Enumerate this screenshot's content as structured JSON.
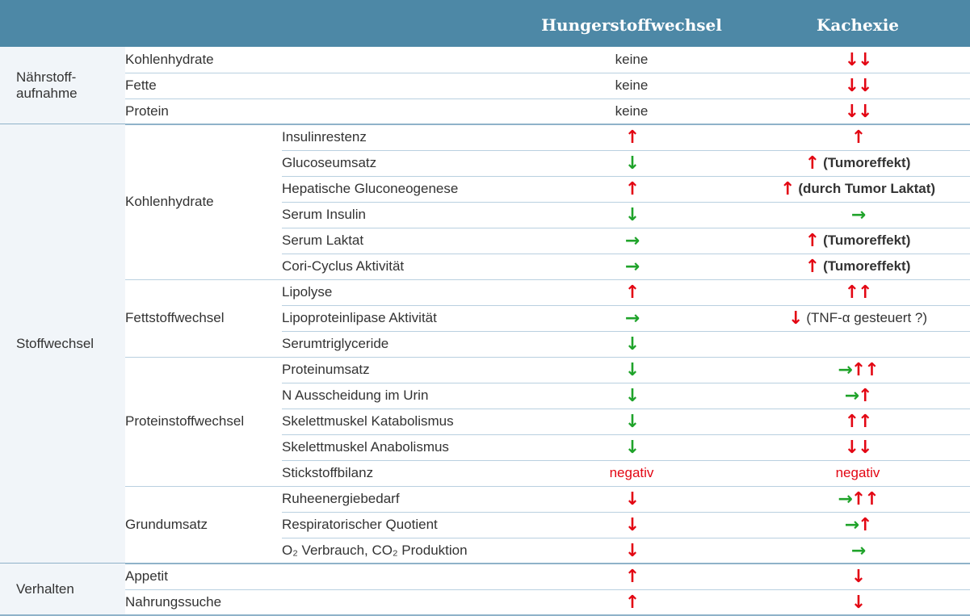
{
  "header": {
    "columns": [
      "Hungerstoffwechsel",
      "Kachexie"
    ]
  },
  "groups": [
    {
      "label": [
        "Nährstoff-",
        "aufnahme"
      ],
      "sections": [
        {
          "label": "Kohlenhydrate",
          "rows": [
            {
              "cells": [
                [
                  {
                    "text": "keine",
                    "color": "#333333"
                  }
                ],
                [
                  {
                    "text": "↓↓",
                    "color": "#e30613"
                  }
                ]
              ]
            }
          ]
        },
        {
          "label": "Fette",
          "rows": [
            {
              "cells": [
                [
                  {
                    "text": "keine",
                    "color": "#333333"
                  }
                ],
                [
                  {
                    "text": "↓↓",
                    "color": "#e30613"
                  }
                ]
              ]
            }
          ]
        },
        {
          "label": "Protein",
          "rows": [
            {
              "cells": [
                [
                  {
                    "text": "keine",
                    "color": "#333333"
                  }
                ],
                [
                  {
                    "text": "↓↓",
                    "color": "#e30613"
                  }
                ]
              ]
            }
          ]
        }
      ]
    },
    {
      "label": [
        "Stoffwechsel"
      ],
      "sections": [
        {
          "label": "Kohlenhydrate",
          "rows": [
            {
              "item": "Insulinrestenz",
              "cells": [
                [
                  {
                    "text": "↑",
                    "color": "#e30613"
                  }
                ],
                [
                  {
                    "text": "↑",
                    "color": "#e30613"
                  }
                ]
              ]
            },
            {
              "item": "Glucoseumsatz",
              "cells": [
                [
                  {
                    "text": "↓",
                    "color": "#1fa32a"
                  }
                ],
                [
                  {
                    "text": "↑",
                    "color": "#e30613"
                  },
                  {
                    "text": "(Tumoreffekt)",
                    "color": "#333333",
                    "bold": true
                  }
                ]
              ]
            },
            {
              "item": "Hepatische Gluconeogenese",
              "cells": [
                [
                  {
                    "text": "↑",
                    "color": "#e30613"
                  }
                ],
                [
                  {
                    "text": "↑",
                    "color": "#e30613"
                  },
                  {
                    "text": "(durch Tumor Laktat)",
                    "color": "#333333",
                    "bold": true
                  }
                ]
              ]
            },
            {
              "item": "Serum Insulin",
              "cells": [
                [
                  {
                    "text": "↓",
                    "color": "#1fa32a"
                  }
                ],
                [
                  {
                    "text": "→",
                    "color": "#1fa32a"
                  }
                ]
              ]
            },
            {
              "item": "Serum Laktat",
              "cells": [
                [
                  {
                    "text": "→",
                    "color": "#1fa32a"
                  }
                ],
                [
                  {
                    "text": "↑",
                    "color": "#e30613"
                  },
                  {
                    "text": "(Tumoreffekt)",
                    "color": "#333333",
                    "bold": true
                  }
                ]
              ]
            },
            {
              "item": "Cori-Cyclus Aktivität",
              "cells": [
                [
                  {
                    "text": "→",
                    "color": "#1fa32a"
                  }
                ],
                [
                  {
                    "text": "↑",
                    "color": "#e30613"
                  },
                  {
                    "text": "(Tumoreffekt)",
                    "color": "#333333",
                    "bold": true
                  }
                ]
              ]
            }
          ]
        },
        {
          "label": "Fettstoffwechsel",
          "rows": [
            {
              "item": "Lipolyse",
              "cells": [
                [
                  {
                    "text": "↑",
                    "color": "#e30613"
                  }
                ],
                [
                  {
                    "text": "↑↑",
                    "color": "#e30613"
                  }
                ]
              ]
            },
            {
              "item": "Lipoproteinlipase Aktivität",
              "cells": [
                [
                  {
                    "text": "→",
                    "color": "#1fa32a"
                  }
                ],
                [
                  {
                    "text": "↓",
                    "color": "#e30613"
                  },
                  {
                    "text": "(TNF-α gesteuert ?)",
                    "color": "#333333"
                  }
                ]
              ]
            },
            {
              "item": "Serumtriglyceride",
              "cells": [
                [
                  {
                    "text": "↓",
                    "color": "#1fa32a"
                  }
                ],
                []
              ]
            }
          ]
        },
        {
          "label": "Proteinstoffwechsel",
          "rows": [
            {
              "item": "Proteinumsatz",
              "cells": [
                [
                  {
                    "text": "↓",
                    "color": "#1fa32a"
                  }
                ],
                [
                  {
                    "text": "→",
                    "color": "#1fa32a"
                  },
                  {
                    "text": "↑↑",
                    "color": "#e30613"
                  }
                ]
              ]
            },
            {
              "item": "N Ausscheidung im Urin",
              "cells": [
                [
                  {
                    "text": "↓",
                    "color": "#1fa32a"
                  }
                ],
                [
                  {
                    "text": "→",
                    "color": "#1fa32a"
                  },
                  {
                    "text": "↑",
                    "color": "#e30613"
                  }
                ]
              ]
            },
            {
              "item": "Skelettmuskel Katabolismus",
              "cells": [
                [
                  {
                    "text": "↓",
                    "color": "#1fa32a"
                  }
                ],
                [
                  {
                    "text": "↑↑",
                    "color": "#e30613"
                  }
                ]
              ]
            },
            {
              "item": "Skelettmuskel Anabolismus",
              "cells": [
                [
                  {
                    "text": "↓",
                    "color": "#1fa32a"
                  }
                ],
                [
                  {
                    "text": "↓↓",
                    "color": "#e30613"
                  }
                ]
              ]
            },
            {
              "item": "Stickstoffbilanz",
              "cells": [
                [
                  {
                    "text": "negativ",
                    "color": "#e30613"
                  }
                ],
                [
                  {
                    "text": "negativ",
                    "color": "#e30613"
                  }
                ]
              ]
            }
          ]
        },
        {
          "label": "Grundumsatz",
          "rows": [
            {
              "item": "Ruheenergiebedarf",
              "cells": [
                [
                  {
                    "text": "↓",
                    "color": "#e30613"
                  }
                ],
                [
                  {
                    "text": "→",
                    "color": "#1fa32a"
                  },
                  {
                    "text": "↑↑",
                    "color": "#e30613"
                  }
                ]
              ]
            },
            {
              "item": "Respiratorischer Quotient",
              "cells": [
                [
                  {
                    "text": "↓",
                    "color": "#e30613"
                  }
                ],
                [
                  {
                    "text": "→",
                    "color": "#1fa32a"
                  },
                  {
                    "text": "↑",
                    "color": "#e30613"
                  }
                ]
              ]
            },
            {
              "item": "O₂ Verbrauch, CO₂ Produktion",
              "cells": [
                [
                  {
                    "text": "↓",
                    "color": "#e30613"
                  }
                ],
                [
                  {
                    "text": "→",
                    "color": "#1fa32a"
                  }
                ]
              ]
            }
          ]
        }
      ]
    },
    {
      "label": [
        "Verhalten"
      ],
      "sections": [
        {
          "label": "Appetit",
          "rows": [
            {
              "cells": [
                [
                  {
                    "text": "↑",
                    "color": "#e30613"
                  }
                ],
                [
                  {
                    "text": "↓",
                    "color": "#e30613"
                  }
                ]
              ]
            }
          ]
        },
        {
          "label": "Nahrungssuche",
          "rows": [
            {
              "cells": [
                [
                  {
                    "text": "↑",
                    "color": "#e30613"
                  }
                ],
                [
                  {
                    "text": "↓",
                    "color": "#e30613"
                  }
                ]
              ]
            }
          ]
        }
      ]
    }
  ]
}
